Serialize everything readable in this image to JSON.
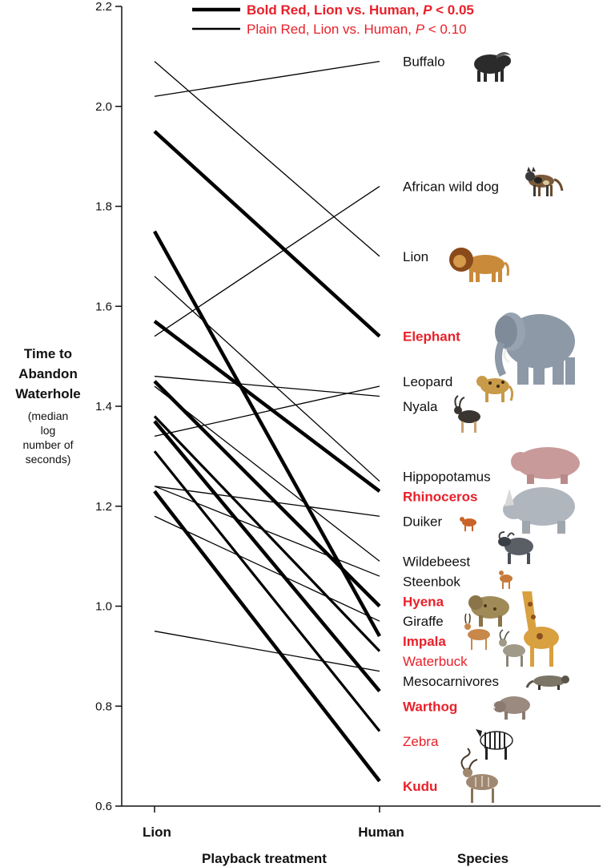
{
  "chart_data": {
    "type": "line",
    "x": [
      "Lion",
      "Human"
    ],
    "xlabel": "Playback treatment",
    "ylabel": "Time to Abandon Waterhole",
    "ylabel_sub": "(median log number of seconds)",
    "species_header": "Species",
    "ylim": [
      0.6,
      2.2
    ],
    "yticks": [
      "0.6",
      "0.8",
      "1.0",
      "1.2",
      "1.4",
      "1.6",
      "1.8",
      "2.0",
      "2.2"
    ],
    "legend": [
      {
        "text": "Bold Red, Lion vs. Human, ",
        "p": "P",
        "rest": " < 0.05",
        "style": "bold"
      },
      {
        "text": "Plain Red, Lion vs. Human, ",
        "p": "P",
        "rest": " < 0.10",
        "style": "plain"
      }
    ],
    "legend_position": "top",
    "colors": {
      "axis": "#111111",
      "line": "#000000",
      "sig": "#e8202a",
      "normal": "#111111"
    },
    "series": [
      {
        "name": "Buffalo",
        "values": [
          2.02,
          2.09
        ],
        "style": "normal"
      },
      {
        "name": "African wild dog",
        "values": [
          1.54,
          1.84
        ],
        "style": "normal"
      },
      {
        "name": "Lion",
        "values": [
          2.09,
          1.7
        ],
        "style": "normal"
      },
      {
        "name": "Elephant",
        "values": [
          1.95,
          1.54
        ],
        "style": "bold"
      },
      {
        "name": "Leopard",
        "values": [
          1.46,
          1.42
        ],
        "style": "normal"
      },
      {
        "name": "Nyala",
        "values": [
          1.34,
          1.44
        ],
        "style": "normal"
      },
      {
        "name": "Hippopotamus",
        "values": [
          1.66,
          1.25
        ],
        "style": "normal"
      },
      {
        "name": "Rhinoceros",
        "values": [
          1.57,
          1.23
        ],
        "style": "bold"
      },
      {
        "name": "Duiker",
        "values": [
          1.24,
          1.18
        ],
        "style": "normal"
      },
      {
        "name": "Wildebeest",
        "values": [
          1.44,
          1.09
        ],
        "style": "normal"
      },
      {
        "name": "Steenbok",
        "values": [
          1.24,
          1.06
        ],
        "style": "normal"
      },
      {
        "name": "Hyena",
        "values": [
          1.45,
          1.0
        ],
        "style": "bold"
      },
      {
        "name": "Giraffe",
        "values": [
          1.18,
          0.97
        ],
        "style": "normal"
      },
      {
        "name": "Impala",
        "values": [
          1.75,
          0.94
        ],
        "style": "bold"
      },
      {
        "name": "Waterbuck",
        "values": [
          1.38,
          0.91
        ],
        "style": "plain"
      },
      {
        "name": "Mesocarnivores",
        "values": [
          0.95,
          0.87
        ],
        "style": "normal"
      },
      {
        "name": "Warthog",
        "values": [
          1.37,
          0.83
        ],
        "style": "bold"
      },
      {
        "name": "Zebra",
        "values": [
          1.31,
          0.75
        ],
        "style": "plain"
      },
      {
        "name": "Kudu",
        "values": [
          1.23,
          0.65
        ],
        "style": "bold"
      }
    ],
    "labels": [
      {
        "name": "Buffalo",
        "style": "normal",
        "icon": "buffalo-icon",
        "y": 2.09
      },
      {
        "name": "African wild dog",
        "style": "normal",
        "icon": "african-wild-dog-icon",
        "y": 1.84
      },
      {
        "name": "Lion",
        "style": "normal",
        "icon": "lion-icon",
        "y": 1.7
      },
      {
        "name": "Elephant",
        "style": "bold",
        "icon": "elephant-icon",
        "y": 1.54
      },
      {
        "name": "Leopard",
        "style": "normal",
        "icon": "leopard-icon",
        "y": 1.45
      },
      {
        "name": "Nyala",
        "style": "normal",
        "icon": "nyala-icon",
        "y": 1.4
      },
      {
        "name": "Hippopotamus",
        "style": "normal",
        "icon": "hippopotamus-icon",
        "y": 1.26
      },
      {
        "name": "Rhinoceros",
        "style": "bold",
        "icon": "rhinoceros-icon",
        "y": 1.22
      },
      {
        "name": "Duiker",
        "style": "normal",
        "icon": "duiker-icon",
        "y": 1.17
      },
      {
        "name": "Wildebeest",
        "style": "normal",
        "icon": "wildebeest-icon",
        "y": 1.09
      },
      {
        "name": "Steenbok",
        "style": "normal",
        "icon": "steenbok-icon",
        "y": 1.05
      },
      {
        "name": "Hyena",
        "style": "bold",
        "icon": "hyena-icon",
        "y": 1.01
      },
      {
        "name": "Giraffe",
        "style": "normal",
        "icon": "giraffe-icon",
        "y": 0.97
      },
      {
        "name": "Impala",
        "style": "bold",
        "icon": "impala-icon",
        "y": 0.93
      },
      {
        "name": "Waterbuck",
        "style": "plain",
        "icon": "waterbuck-icon",
        "y": 0.89
      },
      {
        "name": "Mesocarnivores",
        "style": "normal",
        "icon": "mesocarnivore-icon",
        "y": 0.85
      },
      {
        "name": "Warthog",
        "style": "bold",
        "icon": "warthog-icon",
        "y": 0.8
      },
      {
        "name": "Zebra",
        "style": "plain",
        "icon": "zebra-icon",
        "y": 0.73
      },
      {
        "name": "Kudu",
        "style": "bold",
        "icon": "kudu-icon",
        "y": 0.64
      }
    ]
  }
}
